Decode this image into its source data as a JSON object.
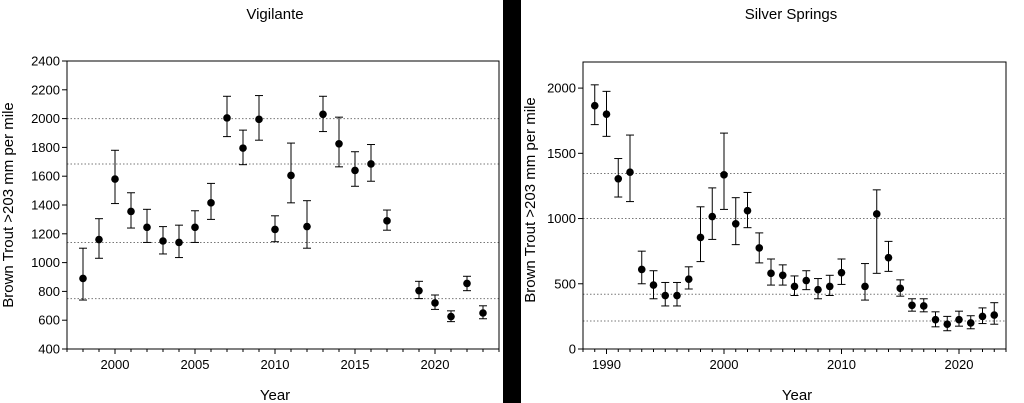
{
  "chart_data": [
    {
      "type": "scatter",
      "title": "Vigilante",
      "xlabel": "Year",
      "ylabel": "Brown Trout >203 mm per mile",
      "xlim": [
        1997,
        2024
      ],
      "ylim": [
        400,
        2400
      ],
      "xticks": [
        2000,
        2005,
        2010,
        2015,
        2020
      ],
      "yticks": [
        400,
        600,
        800,
        1000,
        1200,
        1400,
        1600,
        1800,
        2000,
        2200,
        2400
      ],
      "reference_lines": [
        750,
        1140,
        1685,
        2000
      ],
      "series": [
        {
          "points": [
            {
              "x": 1998,
              "y": 890,
              "lo": 740,
              "hi": 1100
            },
            {
              "x": 1999,
              "y": 1160,
              "lo": 1030,
              "hi": 1305
            },
            {
              "x": 2000,
              "y": 1580,
              "lo": 1410,
              "hi": 1780
            },
            {
              "x": 2001,
              "y": 1355,
              "lo": 1240,
              "hi": 1485
            },
            {
              "x": 2002,
              "y": 1245,
              "lo": 1140,
              "hi": 1370
            },
            {
              "x": 2003,
              "y": 1150,
              "lo": 1060,
              "hi": 1250
            },
            {
              "x": 2004,
              "y": 1140,
              "lo": 1035,
              "hi": 1260
            },
            {
              "x": 2005,
              "y": 1245,
              "lo": 1140,
              "hi": 1360
            },
            {
              "x": 2006,
              "y": 1415,
              "lo": 1300,
              "hi": 1550
            },
            {
              "x": 2007,
              "y": 2005,
              "lo": 1875,
              "hi": 2155
            },
            {
              "x": 2008,
              "y": 1795,
              "lo": 1680,
              "hi": 1920
            },
            {
              "x": 2009,
              "y": 1995,
              "lo": 1850,
              "hi": 2160
            },
            {
              "x": 2010,
              "y": 1230,
              "lo": 1145,
              "hi": 1325
            },
            {
              "x": 2011,
              "y": 1605,
              "lo": 1415,
              "hi": 1830
            },
            {
              "x": 2012,
              "y": 1250,
              "lo": 1100,
              "hi": 1430
            },
            {
              "x": 2013,
              "y": 2030,
              "lo": 1910,
              "hi": 2155
            },
            {
              "x": 2014,
              "y": 1825,
              "lo": 1665,
              "hi": 2010
            },
            {
              "x": 2015,
              "y": 1640,
              "lo": 1530,
              "hi": 1770
            },
            {
              "x": 2016,
              "y": 1685,
              "lo": 1565,
              "hi": 1820
            },
            {
              "x": 2017,
              "y": 1290,
              "lo": 1225,
              "hi": 1365
            },
            {
              "x": 2019,
              "y": 805,
              "lo": 750,
              "hi": 870
            },
            {
              "x": 2020,
              "y": 720,
              "lo": 675,
              "hi": 775
            },
            {
              "x": 2021,
              "y": 625,
              "lo": 590,
              "hi": 665
            },
            {
              "x": 2022,
              "y": 855,
              "lo": 805,
              "hi": 905
            },
            {
              "x": 2023,
              "y": 650,
              "lo": 610,
              "hi": 700
            }
          ]
        }
      ]
    },
    {
      "type": "scatter",
      "title": "Silver Springs",
      "xlabel": "Year",
      "ylabel": "Brown Trout >203 mm per mile",
      "xlim": [
        1988,
        2024
      ],
      "ylim": [
        0,
        2200
      ],
      "xticks": [
        1990,
        2000,
        2010,
        2020
      ],
      "yticks": [
        0,
        500,
        1000,
        1500,
        2000
      ],
      "reference_lines": [
        215,
        420,
        1000,
        1345
      ],
      "series": [
        {
          "points": [
            {
              "x": 1989,
              "y": 1865,
              "lo": 1720,
              "hi": 2025
            },
            {
              "x": 1990,
              "y": 1800,
              "lo": 1630,
              "hi": 1975
            },
            {
              "x": 1991,
              "y": 1305,
              "lo": 1165,
              "hi": 1460
            },
            {
              "x": 1992,
              "y": 1355,
              "lo": 1130,
              "hi": 1640
            },
            {
              "x": 1993,
              "y": 610,
              "lo": 500,
              "hi": 750
            },
            {
              "x": 1994,
              "y": 490,
              "lo": 385,
              "hi": 600
            },
            {
              "x": 1995,
              "y": 410,
              "lo": 330,
              "hi": 510
            },
            {
              "x": 1996,
              "y": 410,
              "lo": 330,
              "hi": 510
            },
            {
              "x": 1997,
              "y": 535,
              "lo": 460,
              "hi": 630
            },
            {
              "x": 1998,
              "y": 855,
              "lo": 670,
              "hi": 1090
            },
            {
              "x": 1999,
              "y": 1015,
              "lo": 840,
              "hi": 1235
            },
            {
              "x": 2000,
              "y": 1335,
              "lo": 1070,
              "hi": 1655
            },
            {
              "x": 2001,
              "y": 960,
              "lo": 800,
              "hi": 1160
            },
            {
              "x": 2002,
              "y": 1060,
              "lo": 930,
              "hi": 1200
            },
            {
              "x": 2003,
              "y": 775,
              "lo": 660,
              "hi": 890
            },
            {
              "x": 2004,
              "y": 580,
              "lo": 490,
              "hi": 690
            },
            {
              "x": 2005,
              "y": 565,
              "lo": 490,
              "hi": 645
            },
            {
              "x": 2006,
              "y": 480,
              "lo": 410,
              "hi": 560
            },
            {
              "x": 2007,
              "y": 525,
              "lo": 455,
              "hi": 600
            },
            {
              "x": 2008,
              "y": 455,
              "lo": 385,
              "hi": 540
            },
            {
              "x": 2009,
              "y": 480,
              "lo": 410,
              "hi": 565
            },
            {
              "x": 2010,
              "y": 585,
              "lo": 495,
              "hi": 690
            },
            {
              "x": 2012,
              "y": 480,
              "lo": 375,
              "hi": 655
            },
            {
              "x": 2013,
              "y": 1035,
              "lo": 580,
              "hi": 1220
            },
            {
              "x": 2014,
              "y": 700,
              "lo": 595,
              "hi": 825
            },
            {
              "x": 2015,
              "y": 465,
              "lo": 405,
              "hi": 530
            },
            {
              "x": 2016,
              "y": 335,
              "lo": 290,
              "hi": 385
            },
            {
              "x": 2017,
              "y": 330,
              "lo": 285,
              "hi": 385
            },
            {
              "x": 2018,
              "y": 225,
              "lo": 170,
              "hi": 285
            },
            {
              "x": 2019,
              "y": 190,
              "lo": 140,
              "hi": 250
            },
            {
              "x": 2020,
              "y": 225,
              "lo": 175,
              "hi": 290
            },
            {
              "x": 2021,
              "y": 200,
              "lo": 155,
              "hi": 255
            },
            {
              "x": 2022,
              "y": 250,
              "lo": 195,
              "hi": 315
            },
            {
              "x": 2023,
              "y": 260,
              "lo": 190,
              "hi": 355
            }
          ]
        }
      ]
    }
  ]
}
